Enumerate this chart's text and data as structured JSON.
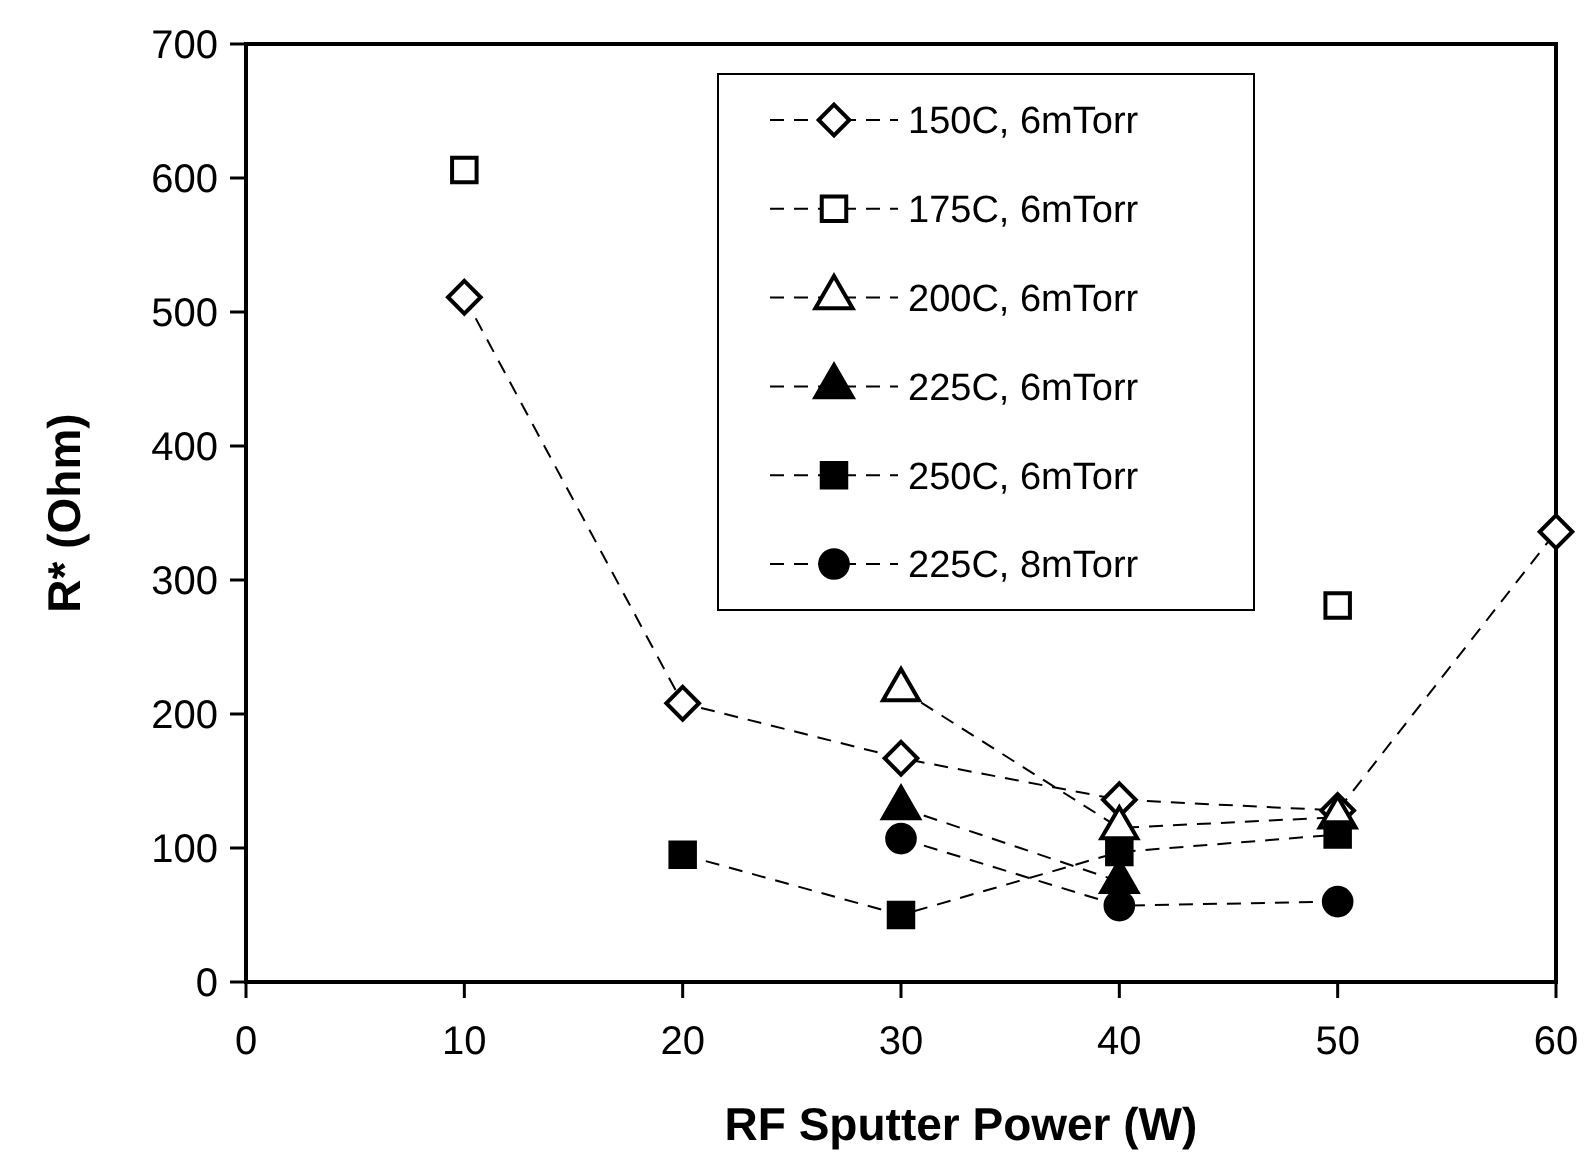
{
  "chart_data": {
    "type": "line",
    "xlabel": "RF Sputter Power (W)",
    "ylabel": "R* (Ohm)",
    "x": [
      10,
      20,
      30,
      40,
      50,
      60
    ],
    "xlim": [
      0,
      60
    ],
    "xticks": [
      0,
      10,
      20,
      30,
      40,
      50,
      60
    ],
    "ylim": [
      0,
      700
    ],
    "yticks": [
      0,
      100,
      200,
      300,
      400,
      500,
      600,
      700
    ],
    "grid": false,
    "legend": "top right",
    "line_style": "dashed",
    "series": [
      {
        "name": "150C, 6mTorr",
        "color": "#ffffff",
        "marker": "diamond",
        "values": [
          511,
          208,
          167,
          136,
          128,
          336
        ]
      },
      {
        "name": "175C, 6mTorr",
        "type": "scatter",
        "color": "#ffffff",
        "marker": "square",
        "values": [
          606,
          null,
          null,
          null,
          281,
          null
        ]
      },
      {
        "name": "200C, 6mTorr",
        "color": "#ffffff",
        "marker": "triangle",
        "values": [
          null,
          null,
          218,
          115,
          123,
          null
        ]
      },
      {
        "name": "225C, 6mTorr",
        "color": "#000000",
        "marker": "triangle",
        "values": [
          null,
          null,
          130,
          75,
          null,
          null
        ]
      },
      {
        "name": "250C, 6mTorr",
        "color": "#000000",
        "marker": "square",
        "values": [
          null,
          95,
          50,
          97,
          110,
          null
        ]
      },
      {
        "name": "225C, 8mTorr",
        "color": "#000000",
        "marker": "circle",
        "values": [
          null,
          null,
          107,
          57,
          60,
          null
        ]
      }
    ]
  }
}
